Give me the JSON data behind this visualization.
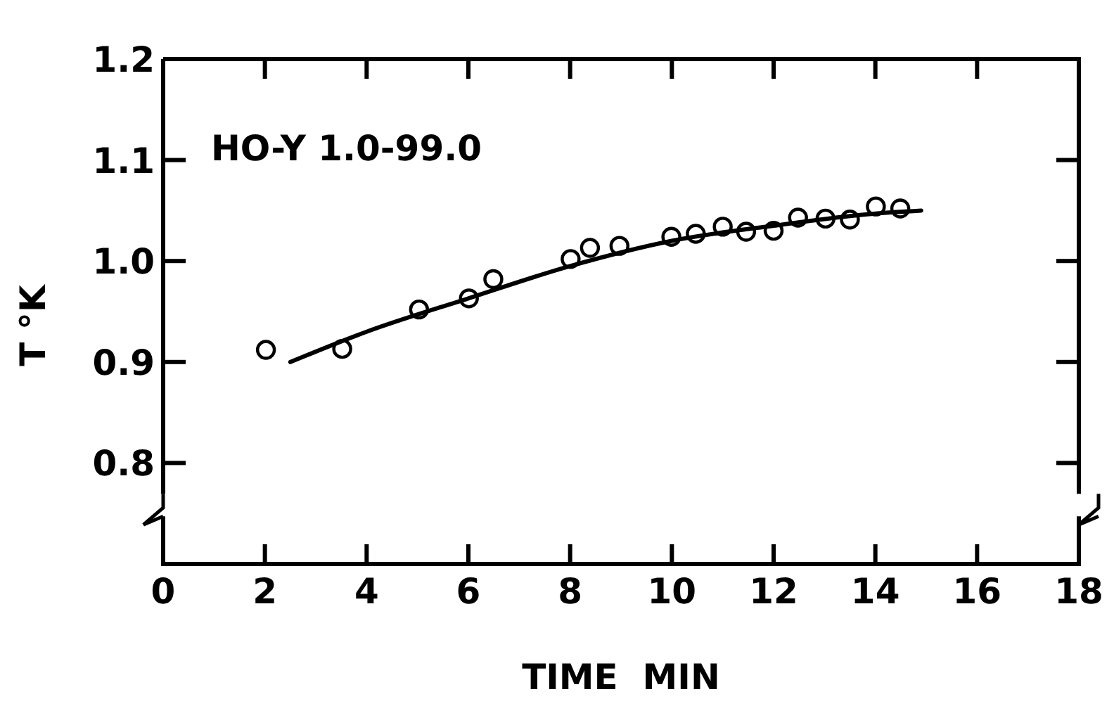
{
  "chart_data": {
    "type": "scatter",
    "xlabel": "TIME  MIN",
    "ylabel": "T °K",
    "annotations": [
      "HO-Y 1.0-99.0"
    ],
    "xlim": [
      0,
      18
    ],
    "ylim": [
      0.7,
      1.2
    ],
    "xticks": [
      0,
      2,
      4,
      6,
      8,
      10,
      12,
      14,
      16,
      18
    ],
    "yticks": [
      0.8,
      0.9,
      {
        "value": 1.0,
        "label": "1.0"
      },
      1.1,
      1.2
    ],
    "grid": false,
    "marker": "circle",
    "series": [
      {
        "color": "#000000",
        "x": [
          2.02,
          3.52,
          5.03,
          6.01,
          6.49,
          8.01,
          8.39,
          8.97,
          9.99,
          10.47,
          11.0,
          11.46,
          12.0,
          12.48,
          13.02,
          13.5,
          14.01,
          14.49
        ],
        "values": [
          0.912,
          0.913,
          0.952,
          0.963,
          0.982,
          1.002,
          1.013,
          1.015,
          1.024,
          1.027,
          1.034,
          1.029,
          1.03,
          1.043,
          1.042,
          1.041,
          1.054,
          1.052
        ]
      },
      {
        "type": "line",
        "color": "#000000",
        "marker": "none",
        "line_style": "solid",
        "x": [
          2.5,
          4,
          6,
          8,
          10,
          12,
          14,
          14.9
        ],
        "values": [
          0.9,
          0.93,
          0.963,
          0.995,
          1.02,
          1.035,
          1.047,
          1.05
        ]
      }
    ]
  }
}
